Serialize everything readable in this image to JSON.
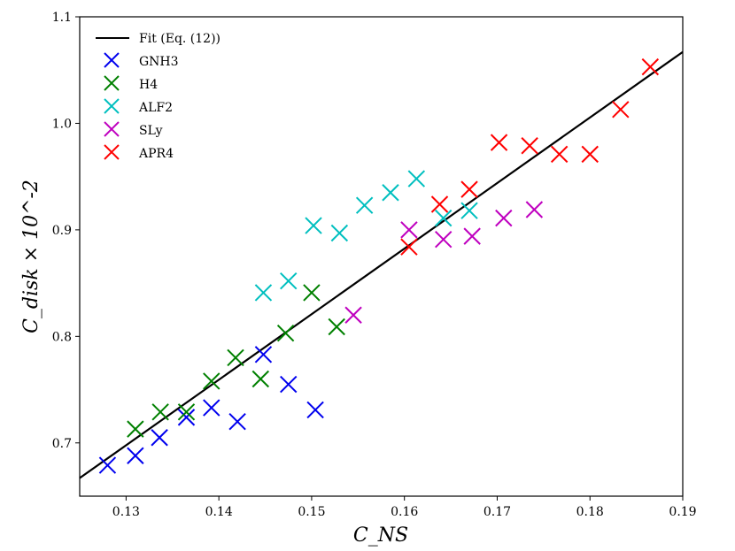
{
  "chart_data": {
    "type": "scatter",
    "title": "",
    "xlabel": "C_NS",
    "ylabel": "C_disk × 10^-2",
    "xlim": [
      0.125,
      0.19
    ],
    "ylim": [
      0.65,
      1.1
    ],
    "xticks": [
      0.13,
      0.14,
      0.15,
      0.16,
      0.17,
      0.18,
      0.19
    ],
    "xtick_labels": [
      "0.13",
      "0.14",
      "0.15",
      "0.16",
      "0.17",
      "0.18",
      "0.19"
    ],
    "yticks": [
      0.7,
      0.8,
      0.9,
      1.0,
      1.1
    ],
    "ytick_labels": [
      "0.7",
      "0.8",
      "0.9",
      "1.0",
      "1.1"
    ],
    "legend_position": "top-left",
    "fit": {
      "name": "Fit (Eq. (12))",
      "color": "#000000",
      "x": [
        0.125,
        0.19
      ],
      "y": [
        0.667,
        1.067
      ]
    },
    "series": [
      {
        "name": "GNH3",
        "color": "#0000ee",
        "marker": "x",
        "x": [
          0.128,
          0.131,
          0.1336,
          0.1365,
          0.1392,
          0.142,
          0.1448,
          0.1475,
          0.1504
        ],
        "y": [
          0.679,
          0.688,
          0.705,
          0.724,
          0.733,
          0.72,
          0.783,
          0.755,
          0.731
        ]
      },
      {
        "name": "H4",
        "color": "#008000",
        "marker": "x",
        "x": [
          0.131,
          0.1337,
          0.1365,
          0.1392,
          0.1418,
          0.1445,
          0.1472,
          0.15,
          0.1527
        ],
        "y": [
          0.713,
          0.729,
          0.729,
          0.758,
          0.78,
          0.76,
          0.803,
          0.841,
          0.809
        ]
      },
      {
        "name": "ALF2",
        "color": "#00bfbf",
        "marker": "x",
        "x": [
          0.1448,
          0.1475,
          0.1502,
          0.153,
          0.1557,
          0.1585,
          0.1613,
          0.1642,
          0.167
        ],
        "y": [
          0.841,
          0.852,
          0.904,
          0.897,
          0.923,
          0.935,
          0.948,
          0.911,
          0.918
        ]
      },
      {
        "name": "SLy",
        "color": "#bf00bf",
        "marker": "x",
        "x": [
          0.1545,
          0.1605,
          0.1642,
          0.1673,
          0.1707,
          0.174
        ],
        "y": [
          0.82,
          0.9,
          0.891,
          0.894,
          0.911,
          0.919
        ]
      },
      {
        "name": "APR4",
        "color": "#ff0000",
        "marker": "x",
        "x": [
          0.1605,
          0.1638,
          0.167,
          0.1702,
          0.1735,
          0.1767,
          0.18,
          0.1833,
          0.1865
        ],
        "y": [
          0.884,
          0.924,
          0.938,
          0.982,
          0.979,
          0.971,
          0.971,
          1.013,
          1.053
        ]
      }
    ]
  }
}
